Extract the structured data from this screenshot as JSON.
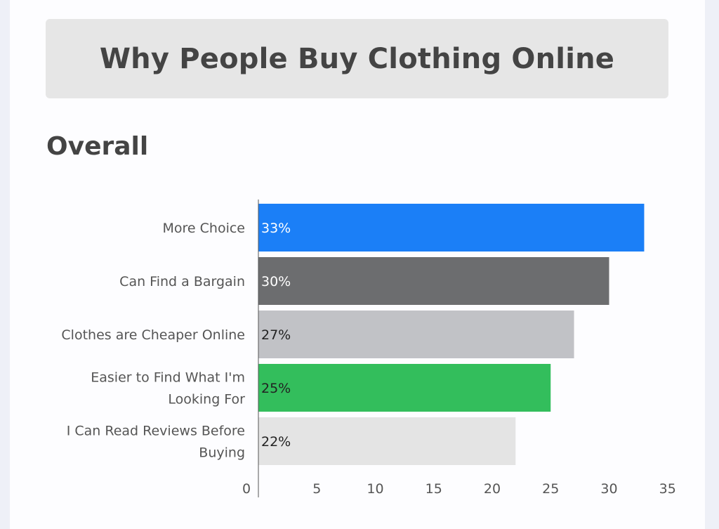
{
  "page": {
    "title": "Why People Buy Clothing Online",
    "section": "Overall"
  },
  "chart_data": {
    "type": "bar",
    "orientation": "horizontal",
    "categories": [
      [
        "More Choice"
      ],
      [
        "Can Find a Bargain"
      ],
      [
        "Clothes are Cheaper Online"
      ],
      [
        "Easier to Find What I'm",
        "Looking For"
      ],
      [
        "I Can Read Reviews Before",
        "Buying"
      ]
    ],
    "values": [
      33,
      30,
      27,
      25,
      22
    ],
    "data_labels": [
      "33%",
      "30%",
      "27%",
      "25%",
      "22%"
    ],
    "colors": [
      "#1b7ff7",
      "#6c6d6f",
      "#c1c2c6",
      "#33be5c",
      "#e4e4e4"
    ],
    "label_colors": [
      "#ffffff",
      "#ffffff",
      "#222222",
      "#222222",
      "#222222"
    ],
    "xlim": [
      0,
      35
    ],
    "xticks": [
      0,
      5,
      10,
      15,
      20,
      25,
      30,
      35
    ],
    "grid": false,
    "legend": "none"
  }
}
